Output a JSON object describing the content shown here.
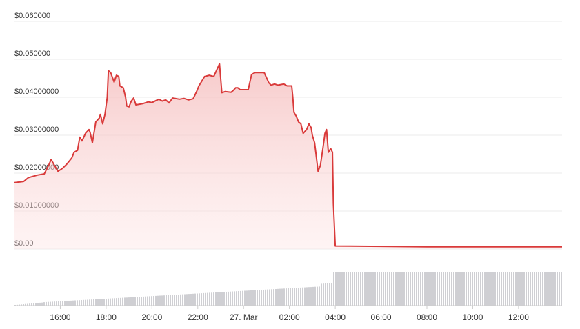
{
  "chart_data": {
    "type": "area",
    "title": "",
    "xlabel": "",
    "ylabel": "",
    "y_tick_labels": [
      "$0.060000",
      "$0.050000",
      "$0.04000000",
      "$0.03000000",
      "$0.02000000",
      "$0.01000000",
      "$0.00"
    ],
    "y_tick_values": [
      0.06,
      0.05,
      0.04,
      0.03,
      0.02,
      0.01,
      0
    ],
    "ylim": [
      0,
      0.06
    ],
    "x_tick_labels": [
      "16:00",
      "18:00",
      "20:00",
      "22:00",
      "27. Mar",
      "02:00",
      "04:00",
      "06:00",
      "08:00",
      "10:00",
      "12:00"
    ],
    "x_tick_hours": [
      16,
      18,
      20,
      22,
      24,
      26,
      28,
      30,
      32,
      34,
      36
    ],
    "xlim_hours": [
      14.0,
      37.9
    ],
    "grid": true,
    "colors": {
      "line": "#d93a3a",
      "fill_top": "#f7c9c9",
      "grid": "#ebebeb",
      "volume": "#cfcfd3"
    },
    "series": [
      {
        "points": [
          [
            14.0,
            0.0175
          ],
          [
            14.4,
            0.0178
          ],
          [
            14.6,
            0.0188
          ],
          [
            15.0,
            0.0195
          ],
          [
            15.3,
            0.0198
          ],
          [
            15.5,
            0.0222
          ],
          [
            15.6,
            0.0236
          ],
          [
            15.75,
            0.022
          ],
          [
            15.9,
            0.0205
          ],
          [
            16.1,
            0.0213
          ],
          [
            16.3,
            0.0225
          ],
          [
            16.5,
            0.024
          ],
          [
            16.6,
            0.0255
          ],
          [
            16.75,
            0.026
          ],
          [
            16.85,
            0.0295
          ],
          [
            16.95,
            0.0285
          ],
          [
            17.1,
            0.0305
          ],
          [
            17.25,
            0.0315
          ],
          [
            17.3,
            0.0308
          ],
          [
            17.4,
            0.028
          ],
          [
            17.55,
            0.0335
          ],
          [
            17.7,
            0.0345
          ],
          [
            17.75,
            0.0355
          ],
          [
            17.85,
            0.033
          ],
          [
            17.95,
            0.0355
          ],
          [
            18.05,
            0.04
          ],
          [
            18.1,
            0.047
          ],
          [
            18.2,
            0.0465
          ],
          [
            18.35,
            0.044
          ],
          [
            18.45,
            0.0458
          ],
          [
            18.55,
            0.0455
          ],
          [
            18.6,
            0.043
          ],
          [
            18.75,
            0.0425
          ],
          [
            18.85,
            0.04
          ],
          [
            18.9,
            0.0377
          ],
          [
            19.0,
            0.0375
          ],
          [
            19.1,
            0.039
          ],
          [
            19.2,
            0.0398
          ],
          [
            19.3,
            0.038
          ],
          [
            19.6,
            0.0383
          ],
          [
            19.85,
            0.0388
          ],
          [
            20.0,
            0.0386
          ],
          [
            20.3,
            0.0395
          ],
          [
            20.45,
            0.039
          ],
          [
            20.6,
            0.0393
          ],
          [
            20.75,
            0.0385
          ],
          [
            20.9,
            0.0398
          ],
          [
            21.2,
            0.0395
          ],
          [
            21.4,
            0.0397
          ],
          [
            21.6,
            0.0393
          ],
          [
            21.8,
            0.0396
          ],
          [
            21.95,
            0.0415
          ],
          [
            22.05,
            0.043
          ],
          [
            22.15,
            0.044
          ],
          [
            22.3,
            0.0455
          ],
          [
            22.5,
            0.0458
          ],
          [
            22.7,
            0.0455
          ],
          [
            22.85,
            0.0475
          ],
          [
            22.95,
            0.0488
          ],
          [
            23.05,
            0.0412
          ],
          [
            23.2,
            0.0415
          ],
          [
            23.45,
            0.0413
          ],
          [
            23.55,
            0.0418
          ],
          [
            23.65,
            0.0425
          ],
          [
            23.75,
            0.0425
          ],
          [
            23.85,
            0.042
          ],
          [
            24.05,
            0.042
          ],
          [
            24.2,
            0.042
          ],
          [
            24.35,
            0.046
          ],
          [
            24.5,
            0.0465
          ],
          [
            24.9,
            0.0465
          ],
          [
            25.1,
            0.0438
          ],
          [
            25.2,
            0.0432
          ],
          [
            25.35,
            0.0435
          ],
          [
            25.5,
            0.0432
          ],
          [
            25.75,
            0.0435
          ],
          [
            25.9,
            0.043
          ],
          [
            26.1,
            0.043
          ],
          [
            26.15,
            0.04
          ],
          [
            26.2,
            0.036
          ],
          [
            26.3,
            0.035
          ],
          [
            26.4,
            0.0335
          ],
          [
            26.5,
            0.033
          ],
          [
            26.6,
            0.0305
          ],
          [
            26.75,
            0.0315
          ],
          [
            26.85,
            0.033
          ],
          [
            26.95,
            0.032
          ],
          [
            27.0,
            0.03
          ],
          [
            27.1,
            0.028
          ],
          [
            27.25,
            0.0205
          ],
          [
            27.35,
            0.022
          ],
          [
            27.45,
            0.026
          ],
          [
            27.55,
            0.0305
          ],
          [
            27.62,
            0.0315
          ],
          [
            27.7,
            0.0255
          ],
          [
            27.8,
            0.0265
          ],
          [
            27.88,
            0.0255
          ],
          [
            27.92,
            0.012
          ],
          [
            28.0,
            0.0008
          ],
          [
            30.0,
            0.0007
          ],
          [
            32.0,
            0.0006
          ],
          [
            34.0,
            0.0006
          ],
          [
            36.0,
            0.0006
          ],
          [
            37.9,
            0.0006
          ]
        ]
      }
    ]
  }
}
